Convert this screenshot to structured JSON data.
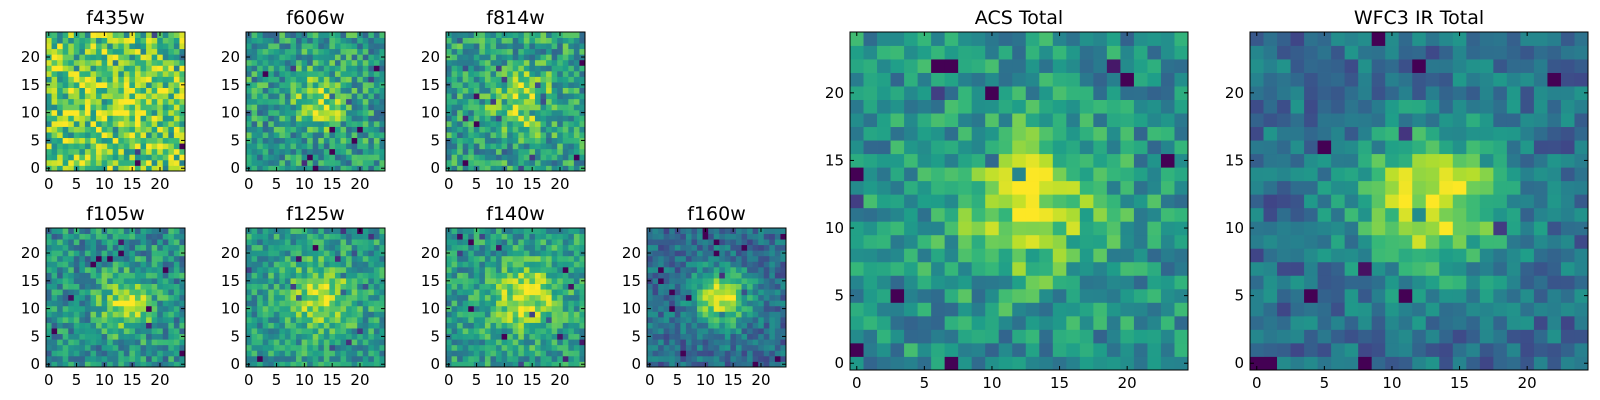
{
  "chart_data": [
    {
      "type": "heatmap",
      "title": "f435w",
      "colormap": "viridis",
      "grid": false,
      "x_ticks": [
        "0",
        "5",
        "10",
        "15",
        "20"
      ],
      "y_ticks": [
        "0",
        "5",
        "10",
        "15",
        "20"
      ],
      "xlim": [
        -0.5,
        24.5
      ],
      "ylim": [
        -0.5,
        24.5
      ],
      "grid_size": 25,
      "peak": [
        13,
        12
      ],
      "source_strength": 0.12,
      "source_sigma": 5.0,
      "noise": 0.3,
      "base": 0.72,
      "seed": 435
    },
    {
      "type": "heatmap",
      "title": "f606w",
      "colormap": "viridis",
      "grid": false,
      "x_ticks": [
        "0",
        "5",
        "10",
        "15",
        "20"
      ],
      "y_ticks": [
        "0",
        "5",
        "10",
        "15",
        "20"
      ],
      "xlim": [
        -0.5,
        24.5
      ],
      "ylim": [
        -0.5,
        24.5
      ],
      "grid_size": 25,
      "peak": [
        13,
        12
      ],
      "source_strength": 0.35,
      "source_sigma": 3.2,
      "noise": 0.24,
      "base": 0.55,
      "seed": 606
    },
    {
      "type": "heatmap",
      "title": "f814w",
      "colormap": "viridis",
      "grid": false,
      "x_ticks": [
        "0",
        "5",
        "10",
        "15",
        "20"
      ],
      "y_ticks": [
        "0",
        "5",
        "10",
        "15",
        "20"
      ],
      "xlim": [
        -0.5,
        24.5
      ],
      "ylim": [
        -0.5,
        24.5
      ],
      "grid_size": 25,
      "peak": [
        13,
        12
      ],
      "source_strength": 0.32,
      "source_sigma": 3.8,
      "noise": 0.24,
      "base": 0.56,
      "seed": 814
    },
    {
      "type": "heatmap",
      "title": "f105w",
      "colormap": "viridis",
      "grid": false,
      "x_ticks": [
        "0",
        "5",
        "10",
        "15",
        "20"
      ],
      "y_ticks": [
        "0",
        "5",
        "10",
        "15",
        "20"
      ],
      "xlim": [
        -0.5,
        24.5
      ],
      "ylim": [
        -0.5,
        24.5
      ],
      "grid_size": 25,
      "peak": [
        14,
        11
      ],
      "source_strength": 0.4,
      "source_sigma": 3.5,
      "noise": 0.22,
      "base": 0.5,
      "seed": 105
    },
    {
      "type": "heatmap",
      "title": "f125w",
      "colormap": "viridis",
      "grid": false,
      "x_ticks": [
        "0",
        "5",
        "10",
        "15",
        "20"
      ],
      "y_ticks": [
        "0",
        "5",
        "10",
        "15",
        "20"
      ],
      "xlim": [
        -0.5,
        24.5
      ],
      "ylim": [
        -0.5,
        24.5
      ],
      "grid_size": 25,
      "peak": [
        13,
        12
      ],
      "source_strength": 0.35,
      "source_sigma": 4.0,
      "noise": 0.2,
      "base": 0.55,
      "seed": 125
    },
    {
      "type": "heatmap",
      "title": "f140w",
      "colormap": "viridis",
      "grid": false,
      "x_ticks": [
        "0",
        "5",
        "10",
        "15",
        "20"
      ],
      "y_ticks": [
        "0",
        "5",
        "10",
        "15",
        "20"
      ],
      "xlim": [
        -0.5,
        24.5
      ],
      "ylim": [
        -0.5,
        24.5
      ],
      "grid_size": 25,
      "peak": [
        14,
        12
      ],
      "source_strength": 0.38,
      "source_sigma": 4.2,
      "noise": 0.2,
      "base": 0.55,
      "seed": 140
    },
    {
      "type": "heatmap",
      "title": "f160w",
      "colormap": "viridis",
      "grid": false,
      "x_ticks": [
        "0",
        "5",
        "10",
        "15",
        "20"
      ],
      "y_ticks": [
        "0",
        "5",
        "10",
        "15",
        "20"
      ],
      "xlim": [
        -0.5,
        24.5
      ],
      "ylim": [
        -0.5,
        24.5
      ],
      "grid_size": 25,
      "peak": [
        13,
        12
      ],
      "source_strength": 0.6,
      "source_sigma": 3.6,
      "noise": 0.16,
      "base": 0.35,
      "seed": 160
    },
    {
      "type": "heatmap",
      "title": "ACS Total",
      "colormap": "viridis",
      "grid": false,
      "x_ticks": [
        "0",
        "5",
        "10",
        "15",
        "20"
      ],
      "y_ticks": [
        "0",
        "5",
        "10",
        "15",
        "20"
      ],
      "xlim": [
        -0.5,
        24.5
      ],
      "ylim": [
        -0.5,
        24.5
      ],
      "grid_size": 25,
      "peak": [
        13,
        12
      ],
      "source_strength": 0.4,
      "source_sigma": 4.0,
      "noise": 0.2,
      "base": 0.5,
      "seed": 900
    },
    {
      "type": "heatmap",
      "title": "WFC3 IR Total",
      "colormap": "viridis",
      "grid": false,
      "x_ticks": [
        "0",
        "5",
        "10",
        "15",
        "20"
      ],
      "y_ticks": [
        "0",
        "5",
        "10",
        "15",
        "20"
      ],
      "xlim": [
        -0.5,
        24.5
      ],
      "ylim": [
        -0.5,
        24.5
      ],
      "grid_size": 25,
      "peak": [
        13,
        12
      ],
      "source_strength": 0.6,
      "source_sigma": 3.8,
      "noise": 0.16,
      "base": 0.36,
      "seed": 901
    }
  ]
}
